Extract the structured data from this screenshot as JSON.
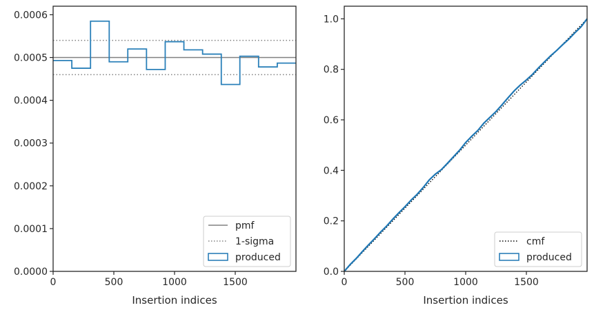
{
  "chart_data": [
    {
      "type": "histogram-step",
      "xlabel": "Insertion indices",
      "ylabel": "",
      "xlim": [
        0,
        2000
      ],
      "ylim": [
        0,
        0.00062
      ],
      "xticks": [
        0,
        500,
        1000,
        1500
      ],
      "xtick_labels": [
        "0",
        "500",
        "1000",
        "1500"
      ],
      "yticks": [
        0,
        0.0001,
        0.0002,
        0.0003,
        0.0004,
        0.0005,
        0.0006
      ],
      "ytick_labels": [
        "0.0000",
        "0.0001",
        "0.0002",
        "0.0003",
        "0.0004",
        "0.0005",
        "0.0006"
      ],
      "bin_edges": [
        0,
        154,
        308,
        462,
        615,
        769,
        923,
        1077,
        1231,
        1385,
        1538,
        1692,
        1846,
        2000
      ],
      "values": [
        0.000493,
        0.000475,
        0.000585,
        0.00049,
        0.00052,
        0.000472,
        0.000537,
        0.000518,
        0.000508,
        0.000437,
        0.000503,
        0.000478,
        0.000487
      ],
      "reference_lines": [
        {
          "name": "pmf",
          "y": 0.0005,
          "style": "solid",
          "color": "#808080"
        },
        {
          "name": "1-sigma",
          "y": 0.00054,
          "style": "dotted",
          "color": "#808080"
        },
        {
          "name": "1-sigma",
          "y": 0.00046,
          "style": "dotted",
          "color": "#808080"
        }
      ],
      "legend": {
        "placement": "lower right",
        "entries": [
          {
            "label": "pmf",
            "style": "solid-line",
            "color": "#808080"
          },
          {
            "label": "1-sigma",
            "style": "dotted-line",
            "color": "#808080"
          },
          {
            "label": "produced",
            "style": "box",
            "color": "#1f77b4"
          }
        ]
      },
      "series_color": "#2a80b9",
      "grid": false
    },
    {
      "type": "line",
      "xlabel": "Insertion indices",
      "ylabel": "",
      "xlim": [
        0,
        2000
      ],
      "ylim": [
        0,
        1.05
      ],
      "xticks": [
        0,
        500,
        1000,
        1500
      ],
      "xtick_labels": [
        "0",
        "500",
        "1000",
        "1500"
      ],
      "yticks": [
        0,
        0.2,
        0.4,
        0.6,
        0.8,
        1.0
      ],
      "ytick_labels": [
        "0.0",
        "0.2",
        "0.4",
        "0.6",
        "0.8",
        "1.0"
      ],
      "series": [
        {
          "name": "cmf",
          "style": "dotted",
          "color": "#000000",
          "x": [
            0,
            2000
          ],
          "values": [
            0,
            1.0
          ]
        },
        {
          "name": "produced",
          "style": "solid",
          "color": "#1f77b4",
          "x": [
            0,
            50,
            100,
            150,
            200,
            250,
            300,
            350,
            400,
            450,
            500,
            550,
            600,
            650,
            700,
            750,
            800,
            850,
            900,
            950,
            1000,
            1050,
            1100,
            1150,
            1200,
            1250,
            1300,
            1350,
            1400,
            1450,
            1500,
            1550,
            1600,
            1650,
            1700,
            1750,
            1800,
            1850,
            1900,
            1950,
            2000
          ],
          "values": [
            0,
            0.028,
            0.052,
            0.079,
            0.105,
            0.13,
            0.156,
            0.18,
            0.207,
            0.232,
            0.256,
            0.282,
            0.305,
            0.332,
            0.362,
            0.385,
            0.403,
            0.428,
            0.454,
            0.48,
            0.51,
            0.535,
            0.558,
            0.587,
            0.61,
            0.633,
            0.66,
            0.688,
            0.715,
            0.738,
            0.758,
            0.78,
            0.806,
            0.83,
            0.854,
            0.875,
            0.898,
            0.92,
            0.945,
            0.968,
            1.0
          ]
        }
      ],
      "legend": {
        "placement": "lower right",
        "entries": [
          {
            "label": "cmf",
            "style": "dotted-line",
            "color": "#000000"
          },
          {
            "label": "produced",
            "style": "box",
            "color": "#1f77b4"
          }
        ]
      },
      "grid": false
    }
  ]
}
